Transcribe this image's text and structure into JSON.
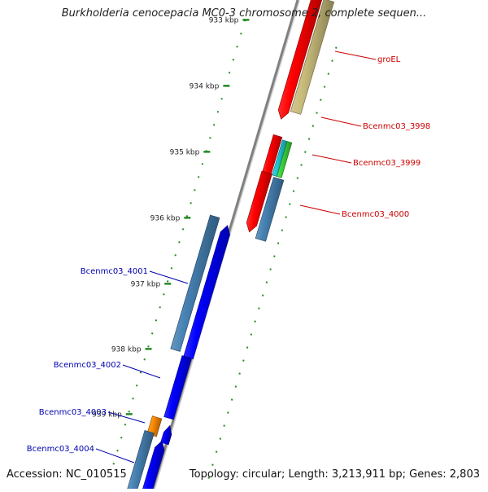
{
  "title": "Burkholderia cenocepacia MC0-3 chromosome 2, complete sequen...",
  "footer": {
    "accession": "Accession: NC_010515",
    "summary": "Topology: circular; Length: 3,213,911 bp; Genes: 2,803"
  },
  "colors": {
    "backbone": "#808080",
    "tick_green": "#228b22",
    "forward_label": "#cc0000",
    "reverse_label": "#0000b0",
    "red_gene": "#ff0000",
    "khaki_gene": "#c8bb7a",
    "steel_gene": "#4682b4",
    "cyan_gene": "#20c8d8",
    "green_gene": "#3ad53a",
    "blue_gene": "#0000ff",
    "orange_gene": "#ff8c00"
  },
  "ticks": [
    {
      "label": "933 kbp"
    },
    {
      "label": "934 kbp"
    },
    {
      "label": "935 kbp"
    },
    {
      "label": "936 kbp"
    },
    {
      "label": "937 kbp"
    },
    {
      "label": "938 kbp"
    },
    {
      "label": "939 kbp"
    }
  ],
  "gene_labels": {
    "forward": [
      "groEL",
      "Bcenmc03_3998",
      "Bcenmc03_3999",
      "Bcenmc03_4000"
    ],
    "reverse": [
      "Bcenmc03_4001",
      "Bcenmc03_4002",
      "Bcenmc03_4003",
      "Bcenmc03_4004"
    ]
  }
}
